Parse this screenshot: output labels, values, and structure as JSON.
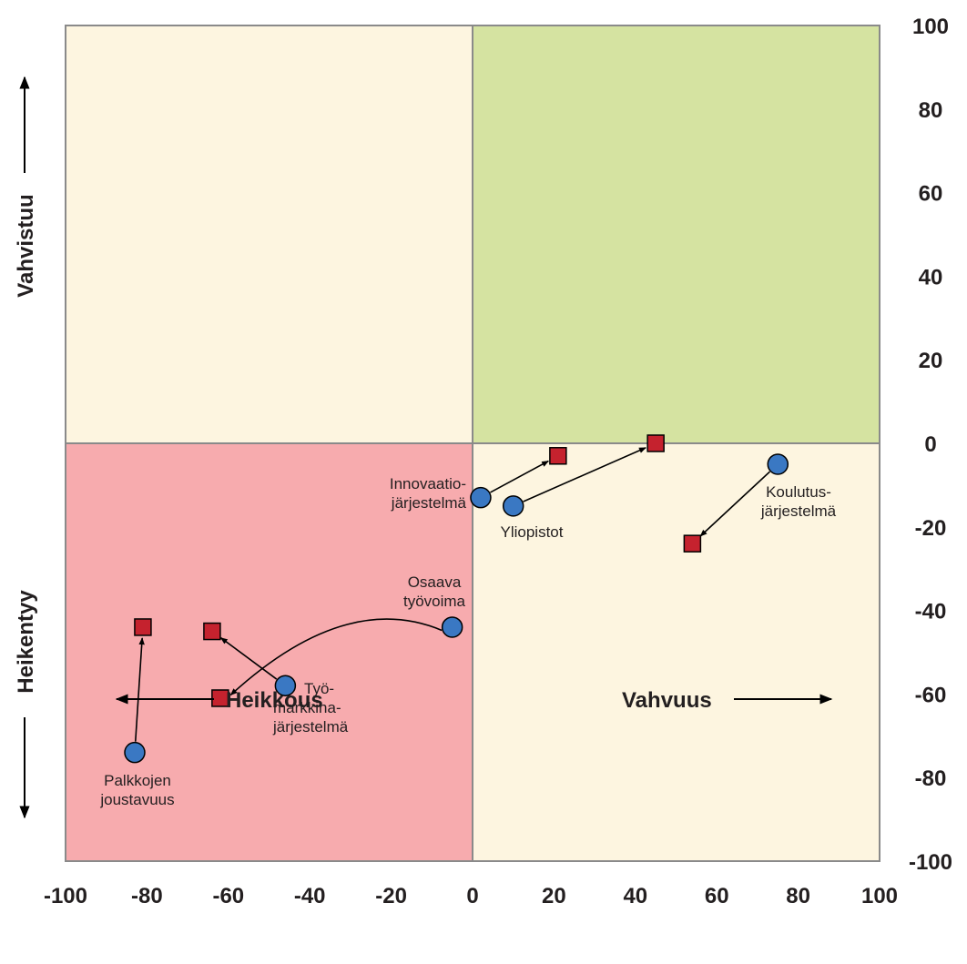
{
  "chart_data": {
    "type": "scatter",
    "xlim": [
      -100,
      100
    ],
    "ylim": [
      -100,
      100
    ],
    "x_ticks": [
      "-100",
      "-80",
      "-60",
      "-40",
      "-20",
      "0",
      "20",
      "40",
      "60",
      "80",
      "100"
    ],
    "y_ticks": [
      "100",
      "80",
      "60",
      "40",
      "20",
      "0",
      "-20",
      "-40",
      "-60",
      "-80",
      "-100"
    ],
    "x_axis_labels": {
      "left": "Heikkous",
      "right": "Vahvuus"
    },
    "y_axis_labels": {
      "top": "Vahvistuu",
      "bottom": "Heikentyy"
    },
    "grid": false,
    "quadrant_colors": {
      "top_left": "#fdf5e0",
      "top_right": "#d5e3a1",
      "bottom_left": "#f7abae",
      "bottom_right": "#fdf5e0"
    },
    "colors": {
      "from_marker": "#3a78c3",
      "to_marker": "#c5222e"
    },
    "points": [
      {
        "label": [
          "Innovaatio-",
          "järjestelmä"
        ],
        "from": [
          2,
          -13
        ],
        "to": [
          21,
          -3
        ]
      },
      {
        "label": [
          "Yliopistot"
        ],
        "from": [
          10,
          -15
        ],
        "to": [
          45,
          0
        ]
      },
      {
        "label": [
          "Koulutus-",
          "järjestelmä"
        ],
        "from": [
          75,
          -5
        ],
        "to": [
          54,
          -24
        ]
      },
      {
        "label": [
          "Osaava",
          "työvoima"
        ],
        "from": [
          -5,
          -44
        ],
        "to": [
          -62,
          -61
        ]
      },
      {
        "label": [
          "Työ-",
          "markkina-",
          "järjestelmä"
        ],
        "from": [
          -46,
          -58
        ],
        "to": [
          -64,
          -45
        ]
      },
      {
        "label": [
          "Palkkojen",
          "joustavuus"
        ],
        "from": [
          -83,
          -74
        ],
        "to": [
          -81,
          -44
        ]
      }
    ]
  }
}
